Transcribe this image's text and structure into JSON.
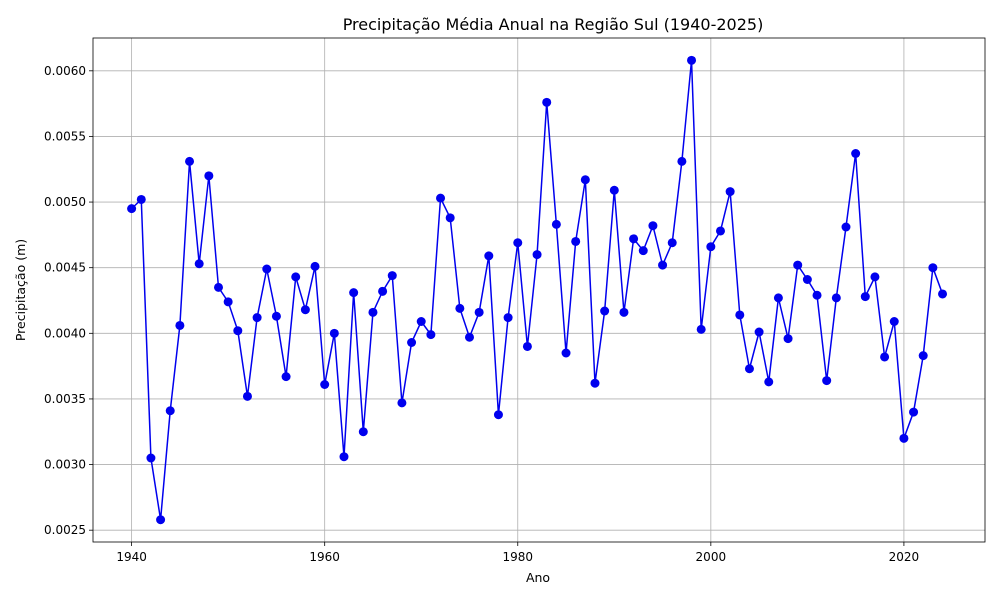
{
  "chart_data": {
    "type": "line",
    "title": "Precipitação Média Anual na Região Sul (1940-2025)",
    "xlabel": "Ano",
    "ylabel": "Precipitação (m)",
    "xlim": [
      1936,
      2028.4
    ],
    "ylim": [
      0.00241,
      0.00625
    ],
    "xticks": [
      1940,
      1960,
      1980,
      2000,
      2020
    ],
    "yticks": [
      0.0025,
      0.003,
      0.0035,
      0.004,
      0.0045,
      0.005,
      0.0055,
      0.006
    ],
    "grid": true,
    "color": "#0000ee",
    "series": [
      {
        "x": [
          1940,
          1941,
          1942,
          1943,
          1944,
          1945,
          1946,
          1947,
          1948,
          1949,
          1950,
          1951,
          1952,
          1953,
          1954,
          1955,
          1956,
          1957,
          1958,
          1959,
          1960,
          1961,
          1962,
          1963,
          1964,
          1965,
          1966,
          1967,
          1968,
          1969,
          1970,
          1971,
          1972,
          1973,
          1974,
          1975,
          1976,
          1977,
          1978,
          1979,
          1980,
          1981,
          1982,
          1983,
          1984,
          1985,
          1986,
          1987,
          1988,
          1989,
          1990,
          1991,
          1992,
          1993,
          1994,
          1995,
          1996,
          1997,
          1998,
          1999,
          2000,
          2001,
          2002,
          2003,
          2004,
          2005,
          2006,
          2007,
          2008,
          2009,
          2010,
          2011,
          2012,
          2013,
          2014,
          2015,
          2016,
          2017,
          2018,
          2019,
          2020,
          2021,
          2022,
          2023,
          2024
        ],
        "values": [
          0.00495,
          0.00502,
          0.00305,
          0.00258,
          0.00341,
          0.00406,
          0.00531,
          0.00453,
          0.0052,
          0.00435,
          0.00424,
          0.00402,
          0.00352,
          0.00412,
          0.00449,
          0.00413,
          0.00367,
          0.00443,
          0.00418,
          0.00451,
          0.00361,
          0.004,
          0.00306,
          0.00431,
          0.00325,
          0.00416,
          0.00432,
          0.00444,
          0.00347,
          0.00393,
          0.00409,
          0.00399,
          0.00503,
          0.00488,
          0.00419,
          0.00397,
          0.00416,
          0.00459,
          0.00338,
          0.00412,
          0.00469,
          0.0039,
          0.0046,
          0.00576,
          0.00483,
          0.00385,
          0.0047,
          0.00517,
          0.00362,
          0.00417,
          0.00509,
          0.00416,
          0.00472,
          0.00463,
          0.00482,
          0.00452,
          0.00469,
          0.00531,
          0.00608,
          0.00403,
          0.00466,
          0.00478,
          0.00508,
          0.00414,
          0.00373,
          0.00401,
          0.00363,
          0.00427,
          0.00396,
          0.00452,
          0.00441,
          0.00429,
          0.00364,
          0.00427,
          0.00481,
          0.00537,
          0.00428,
          0.00443,
          0.00382,
          0.00409,
          0.0032,
          0.0034,
          0.00383,
          0.0045,
          0.0043
        ]
      }
    ]
  }
}
